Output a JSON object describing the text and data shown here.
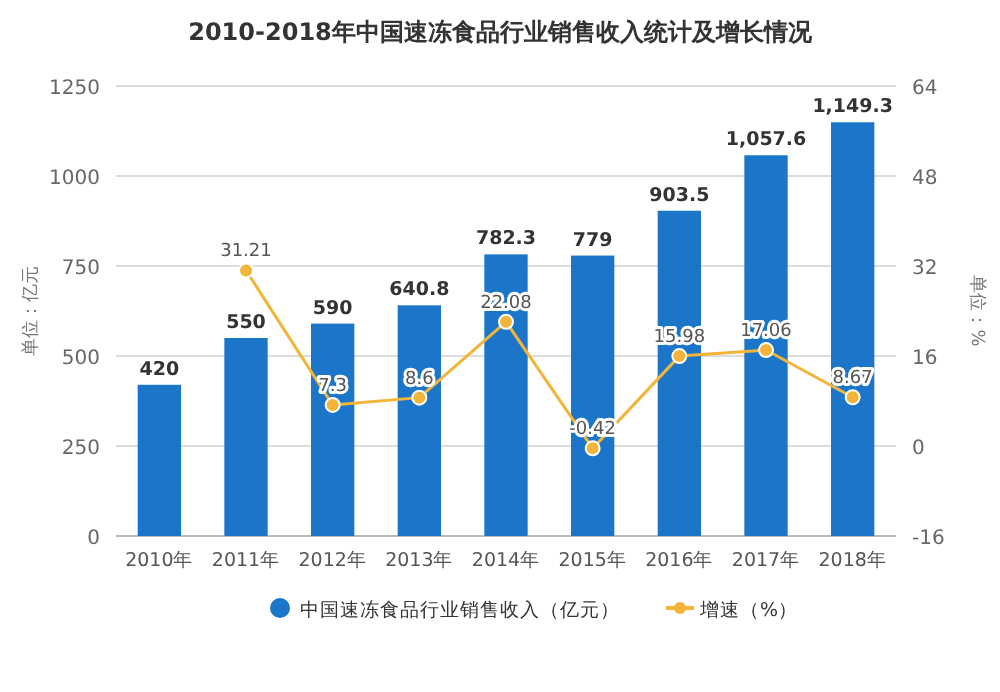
{
  "chart_data": {
    "type": "bar",
    "title": "2010-2018年中国速冻食品行业销售收入统计及增长情况",
    "categories": [
      "2010年",
      "2011年",
      "2012年",
      "2013年",
      "2014年",
      "2015年",
      "2016年",
      "2017年",
      "2018年"
    ],
    "ylabel": "单位：亿元",
    "y2label": "单位：%",
    "ylim": [
      0,
      1250
    ],
    "yticks": [
      0,
      250,
      500,
      750,
      1000,
      1250
    ],
    "y2lim": [
      -16,
      64
    ],
    "y2ticks": [
      -16,
      0,
      16,
      32,
      48,
      64
    ],
    "grid": "y",
    "legend": "bottom",
    "series": [
      {
        "name": "中国速冻食品行业销售收入（亿元）",
        "color": "#1b75c9",
        "values": [
          420,
          550,
          590,
          640.8,
          782.3,
          779,
          903.5,
          1057.6,
          1149.3
        ],
        "value_labels": [
          "420",
          "550",
          "590",
          "640.8",
          "782.3",
          "779",
          "903.5",
          "1,057.6",
          "1,149.3"
        ]
      },
      {
        "name": "增速（%）",
        "type": "line",
        "axis": "y2",
        "color": "#f2b53a",
        "marker": "circle",
        "values": [
          null,
          31.21,
          7.3,
          8.6,
          22.08,
          -0.42,
          15.98,
          17.06,
          8.67
        ],
        "value_labels": [
          null,
          "31.21",
          "7.3",
          "8.6",
          "22.08",
          "-0.42",
          "15.98",
          "17.06",
          "8.67"
        ]
      }
    ]
  }
}
